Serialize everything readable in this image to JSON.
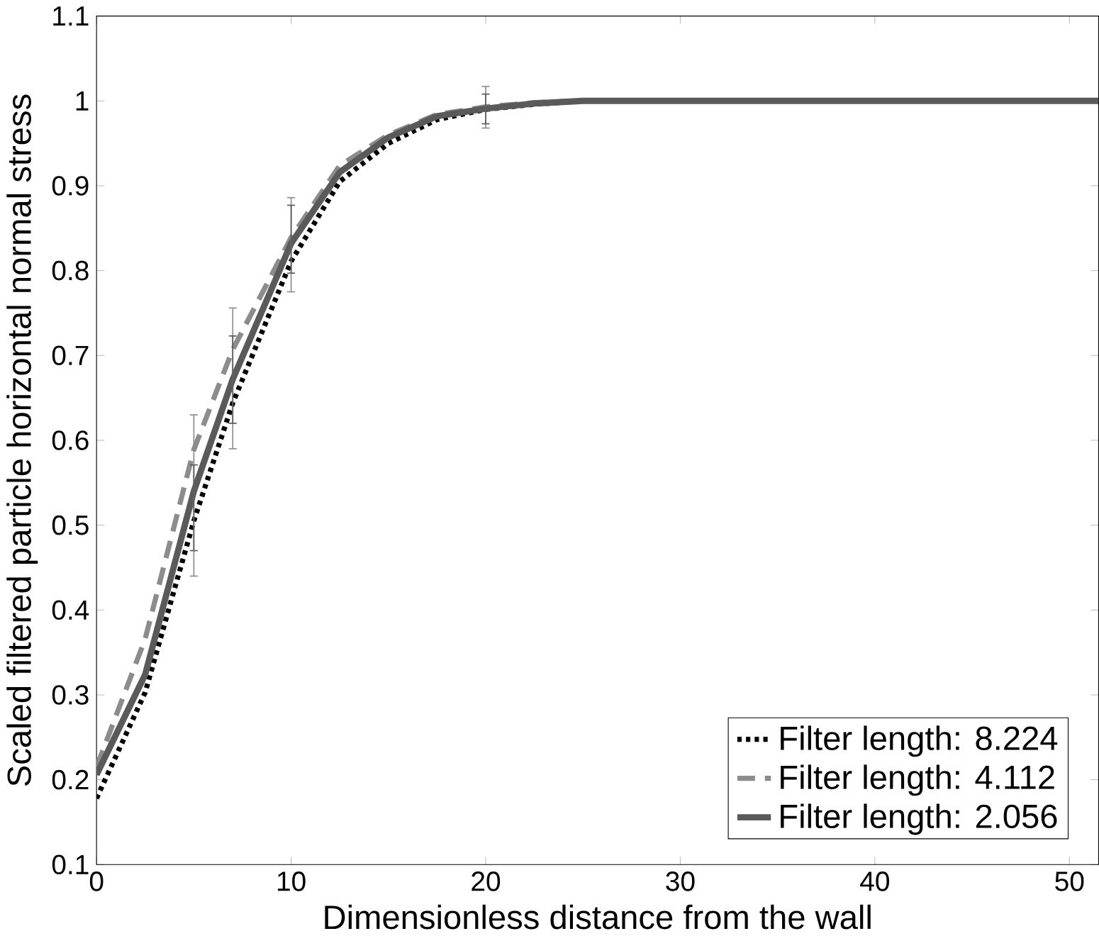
{
  "chart_data": {
    "type": "line",
    "xlabel": "Dimensionless distance from the wall",
    "ylabel": "Scaled filtered particle horizontal normal stress",
    "xlim": [
      0,
      51.5
    ],
    "ylim": [
      0.1,
      1.1
    ],
    "xticks": [
      0,
      10,
      20,
      30,
      40,
      50
    ],
    "yticks": [
      0.1,
      0.2,
      0.3,
      0.4,
      0.5,
      0.6,
      0.7,
      0.8,
      0.9,
      1,
      1.1
    ],
    "legend": "bottom right",
    "grid": false,
    "series": [
      {
        "name": "Filter length: 8.224",
        "color": "#000000",
        "line_style": "dotted",
        "x": [
          0,
          2.5,
          5,
          7,
          10,
          12.5,
          15,
          17.5,
          20,
          22.5,
          25,
          30,
          40,
          51.5
        ],
        "values": [
          0.178,
          0.303,
          0.505,
          0.644,
          0.811,
          0.905,
          0.95,
          0.978,
          0.99,
          0.996,
          1,
          1,
          1,
          1
        ]
      },
      {
        "name": "Filter length: 4.112",
        "color": "#8c8c8c",
        "line_style": "dashed",
        "x": [
          0,
          2.5,
          5,
          7,
          10,
          12.5,
          15,
          17.5,
          20,
          22.5,
          25,
          30,
          40,
          51.5
        ],
        "values": [
          0.215,
          0.366,
          0.589,
          0.707,
          0.839,
          0.924,
          0.96,
          0.984,
          0.993,
          0.998,
          1,
          1,
          1,
          1
        ],
        "errors": [
          null,
          null,
          [
            0.44,
            0.63
          ],
          [
            0.59,
            0.756
          ],
          [
            0.775,
            0.886
          ],
          null,
          null,
          null,
          [
            0.968,
            1.017
          ],
          null,
          null,
          null,
          null,
          null
        ]
      },
      {
        "name": "Filter length: 2.056",
        "color": "#5a5a5a",
        "line_style": "solid",
        "x": [
          0,
          2.5,
          5,
          7,
          10,
          12.5,
          15,
          17.5,
          20,
          22.5,
          25,
          30,
          40,
          51.5
        ],
        "values": [
          0.206,
          0.324,
          0.54,
          0.672,
          0.832,
          0.916,
          0.957,
          0.982,
          0.991,
          0.997,
          1,
          1,
          1,
          1
        ],
        "errors": [
          null,
          null,
          [
            0.47,
            0.571
          ],
          [
            0.62,
            0.723
          ],
          [
            0.797,
            0.877
          ],
          null,
          null,
          null,
          [
            0.973,
            1.008
          ],
          null,
          null,
          null,
          null,
          null
        ]
      }
    ]
  }
}
